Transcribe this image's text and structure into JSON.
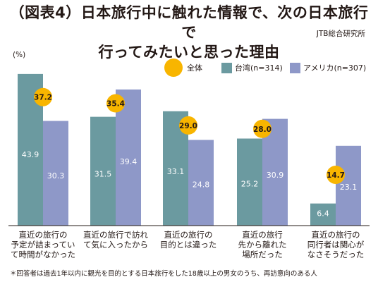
{
  "title": "（図表4）日本旅行中に触れた情報で、次の日本旅行で行ってみたいと思った理由",
  "title_line1": "（図表4）日本旅行中に触れた情報で、次の日本旅行で",
  "title_line2": "行ってみたいと思った理由",
  "source": "JTB総合研究所",
  "footnote": "＊回答者は過去1年以内に観光を目的とする日本旅行をした18歳以上の男女のうち、再訪意向のある人",
  "colors": {
    "overall": "#f8b500",
    "taiwan": "#6b9aa0",
    "usa": "#8e98c8"
  },
  "chart_data": {
    "type": "bar",
    "unit_label": "(%)",
    "categories": [
      [
        "直近の旅行の",
        "予定が詰まってい",
        "て時間がなかった"
      ],
      [
        "直近の旅行で訪れ",
        "て気に入ったから"
      ],
      [
        "直近の旅行の",
        "目的とは違った"
      ],
      [
        "直近の旅行",
        "先から離れた",
        "場所だった"
      ],
      [
        "直近の旅行の",
        "同行者は関心が",
        "なさそうだった"
      ]
    ],
    "series": [
      {
        "name": "台湾(n=314)",
        "values": [
          43.9,
          31.5,
          33.1,
          25.2,
          6.4
        ]
      },
      {
        "name": "アメリカ(n=307)",
        "values": [
          30.3,
          39.4,
          24.8,
          30.9,
          23.1
        ]
      }
    ],
    "overall": {
      "name": "全体",
      "values": [
        37.2,
        35.4,
        29.0,
        28.0,
        14.7
      ]
    },
    "ylim": [
      0,
      50
    ],
    "grid": false,
    "legend_position": "top-right"
  }
}
